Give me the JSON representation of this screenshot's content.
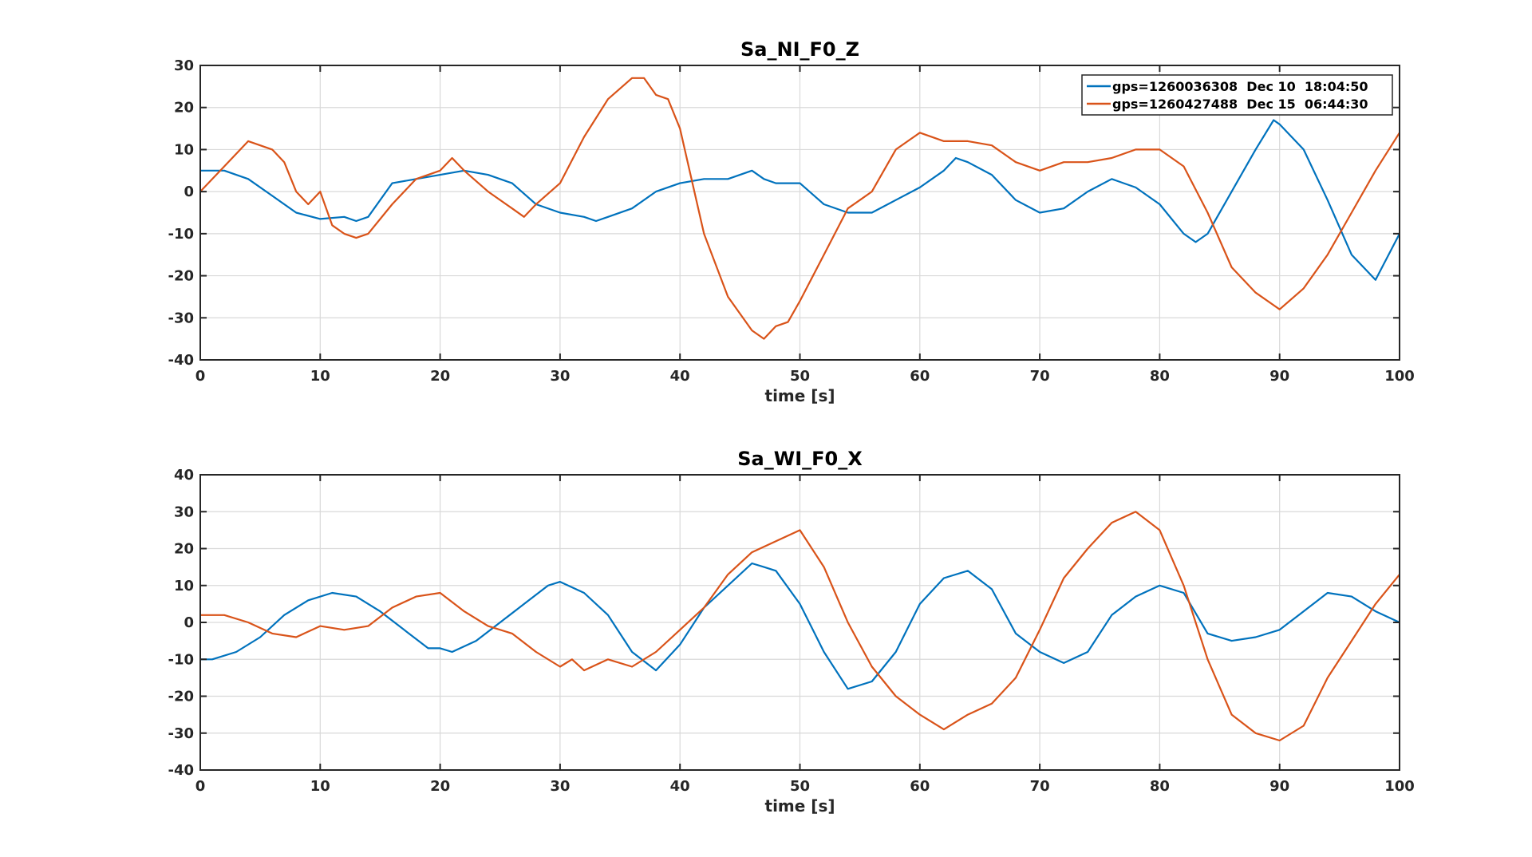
{
  "colors": {
    "series1": "#0072bd",
    "series2": "#d95319",
    "grid": "#d9d9d9",
    "axis": "#262626"
  },
  "chart_data": [
    {
      "type": "line",
      "title": "Sa_NI_F0_Z",
      "xlabel": "time [s]",
      "ylabel": "",
      "xlim": [
        0,
        100
      ],
      "ylim": [
        -40,
        30
      ],
      "xticks": [
        0,
        10,
        20,
        30,
        40,
        50,
        60,
        70,
        80,
        90,
        100
      ],
      "yticks": [
        -40,
        -30,
        -20,
        -10,
        0,
        10,
        20,
        30
      ],
      "grid": true,
      "legend": "top-right",
      "series": [
        {
          "name": "gps=1260036308  Dec 10  18:04:50",
          "x": [
            0,
            2,
            4,
            6,
            8,
            10,
            12,
            13,
            14,
            16,
            18,
            20,
            22,
            24,
            26,
            28,
            30,
            32,
            33,
            34,
            36,
            38,
            40,
            42,
            44,
            46,
            47,
            48,
            50,
            52,
            54,
            56,
            58,
            60,
            62,
            63,
            64,
            66,
            68,
            70,
            72,
            74,
            76,
            78,
            80,
            82,
            83,
            84,
            86,
            88,
            89.5,
            90,
            92,
            94,
            96,
            98,
            100
          ],
          "y": [
            5,
            5,
            3,
            -1,
            -5,
            -6.5,
            -6,
            -7,
            -6,
            2,
            3,
            4,
            5,
            4,
            2,
            -3,
            -5,
            -6,
            -7,
            -6,
            -4,
            0,
            2,
            3,
            3,
            5,
            3,
            2,
            2,
            -3,
            -5,
            -5,
            -2,
            1,
            5,
            8,
            7,
            4,
            -2,
            -5,
            -4,
            0,
            3,
            1,
            -3,
            -10,
            -12,
            -10,
            0,
            10,
            17,
            16,
            10,
            -2,
            -15,
            -21,
            -10
          ]
        },
        {
          "name": "gps=1260427488  Dec 15  06:44:30",
          "x": [
            0,
            2,
            4,
            6,
            7,
            8,
            9,
            10,
            11,
            12,
            13,
            14,
            16,
            18,
            20,
            21,
            22,
            24,
            26,
            27,
            28,
            30,
            32,
            34,
            36,
            37,
            38,
            39,
            40,
            42,
            44,
            46,
            47,
            48,
            49,
            50,
            52,
            54,
            55,
            56,
            58,
            60,
            62,
            64,
            66,
            68,
            70,
            72,
            74,
            76,
            78,
            80,
            82,
            84,
            86,
            88,
            90,
            92,
            94,
            96,
            98,
            100
          ],
          "y": [
            0,
            6,
            12,
            10,
            7,
            0,
            -3,
            0,
            -8,
            -10,
            -11,
            -10,
            -3,
            3,
            5,
            8,
            5,
            0,
            -4,
            -6,
            -3,
            2,
            13,
            22,
            27,
            27,
            23,
            22,
            15,
            -10,
            -25,
            -33,
            -35,
            -32,
            -31,
            -26,
            -15,
            -4,
            -2,
            0,
            10,
            14,
            12,
            12,
            11,
            7,
            5,
            7,
            7,
            8,
            10,
            10,
            6,
            -5,
            -18,
            -24,
            -28,
            -23,
            -15,
            -5,
            5,
            14
          ]
        }
      ]
    },
    {
      "type": "line",
      "title": "Sa_WI_F0_X",
      "xlabel": "time [s]",
      "ylabel": "",
      "xlim": [
        0,
        100
      ],
      "ylim": [
        -40,
        40
      ],
      "xticks": [
        0,
        10,
        20,
        30,
        40,
        50,
        60,
        70,
        80,
        90,
        100
      ],
      "yticks": [
        -40,
        -30,
        -20,
        -10,
        0,
        10,
        20,
        30,
        40
      ],
      "grid": true,
      "series": [
        {
          "x": [
            0,
            1,
            3,
            5,
            7,
            9,
            11,
            13,
            15,
            17,
            19,
            20,
            21,
            23,
            25,
            27,
            29,
            30,
            32,
            34,
            36,
            38,
            40,
            42,
            44,
            46,
            47,
            48,
            50,
            52,
            54,
            56,
            58,
            60,
            62,
            64,
            66,
            68,
            70,
            72,
            74,
            76,
            78,
            80,
            82,
            84,
            86,
            88,
            90,
            92,
            94,
            96,
            98,
            100
          ],
          "y": [
            -10,
            -10,
            -8,
            -4,
            2,
            6,
            8,
            7,
            3,
            -2,
            -7,
            -7,
            -8,
            -5,
            0,
            5,
            10,
            11,
            8,
            2,
            -8,
            -13,
            -6,
            4,
            10,
            16,
            15,
            14,
            5,
            -8,
            -18,
            -16,
            -8,
            5,
            12,
            14,
            9,
            -3,
            -8,
            -11,
            -8,
            2,
            7,
            10,
            8,
            -3,
            -5,
            -4,
            -2,
            3,
            8,
            7,
            3,
            0
          ]
        },
        {
          "x": [
            0,
            2,
            4,
            6,
            8,
            10,
            12,
            14,
            16,
            18,
            20,
            22,
            24,
            26,
            28,
            30,
            31,
            32,
            34,
            36,
            38,
            40,
            42,
            44,
            46,
            48,
            50,
            52,
            54,
            56,
            58,
            60,
            62,
            64,
            66,
            68,
            70,
            72,
            74,
            76,
            78,
            80,
            82,
            84,
            86,
            88,
            90,
            92,
            94,
            96,
            98,
            100
          ],
          "y": [
            2,
            2,
            0,
            -3,
            -4,
            -1,
            -2,
            -1,
            4,
            7,
            8,
            3,
            -1,
            -3,
            -8,
            -12,
            -10,
            -13,
            -10,
            -12,
            -8,
            -2,
            4,
            13,
            19,
            22,
            25,
            15,
            0,
            -12,
            -20,
            -25,
            -29,
            -25,
            -22,
            -15,
            -2,
            12,
            20,
            27,
            30,
            25,
            10,
            -10,
            -25,
            -30,
            -32,
            -28,
            -15,
            -5,
            5,
            13
          ]
        }
      ]
    }
  ]
}
